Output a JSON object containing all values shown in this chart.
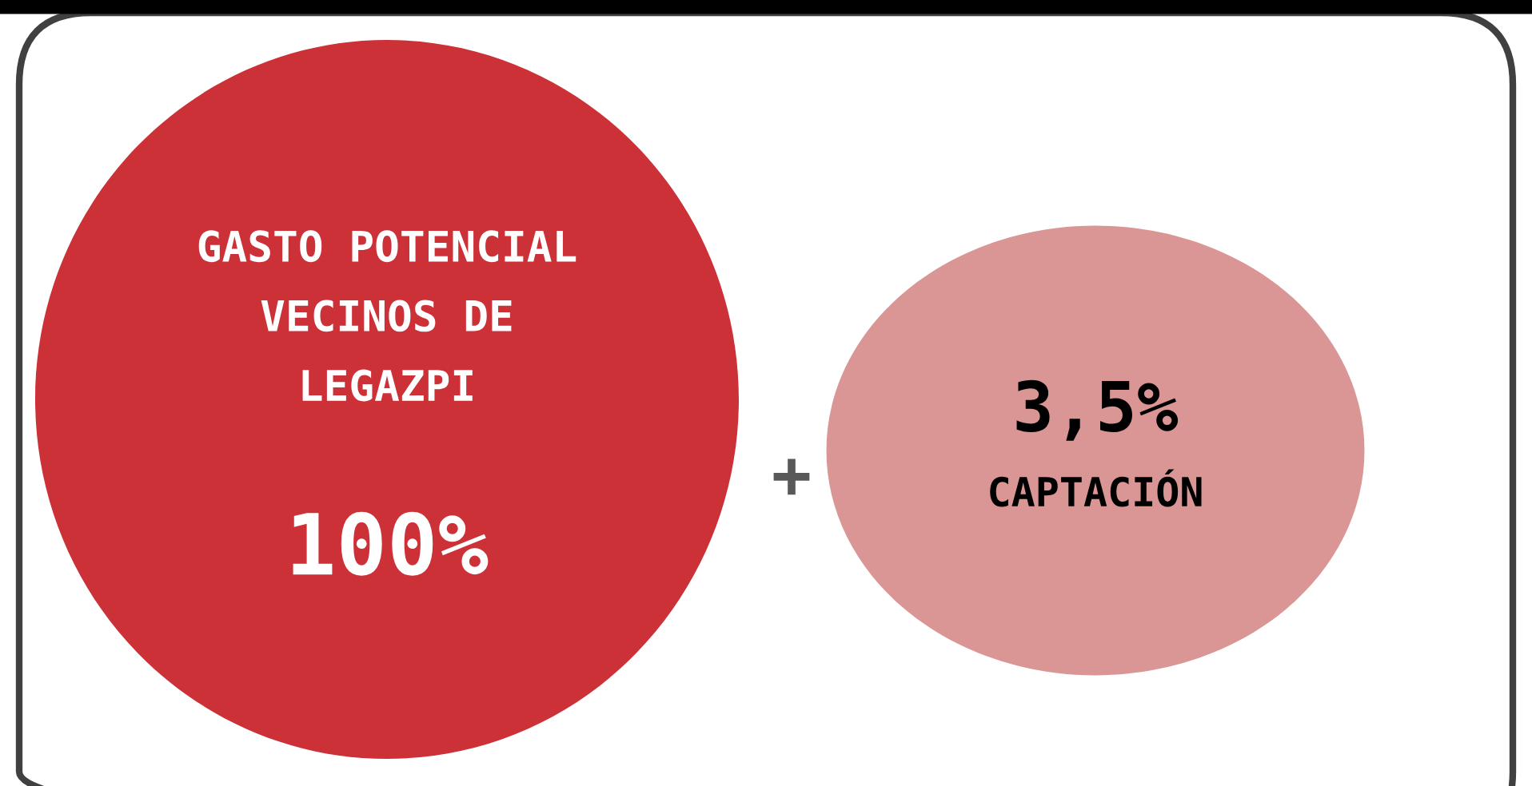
{
  "chart_data": {
    "type": "other",
    "categories": [
      "GASTO POTENCIAL\nVECINOS DE\nLEGAZPI",
      "CAPTACIÓN"
    ],
    "values": [
      100,
      3.5
    ],
    "value_labels": [
      "100%",
      "3,5%"
    ],
    "colors": [
      "#cc3138",
      "#d99694"
    ],
    "annotations": [
      "+"
    ]
  }
}
